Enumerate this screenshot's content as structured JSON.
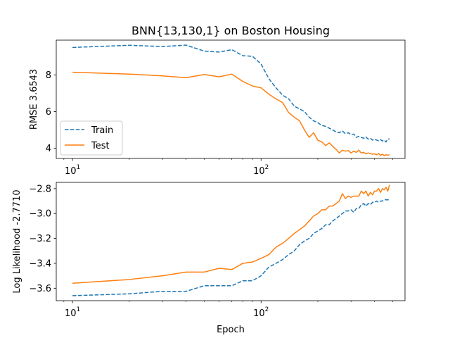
{
  "chart_data": [
    {
      "type": "line",
      "title": "BNN{13,130,1} on Boston Housing",
      "xlabel": "",
      "ylabel": "RMSE 3.6543",
      "xscale": "log",
      "xlim": [
        8.2,
        580
      ],
      "ylim": [
        3.45,
        9.9
      ],
      "yticks": [
        4,
        6,
        8
      ],
      "ytick_labels": [
        "4",
        "6",
        "8"
      ],
      "xticks": [
        10,
        100
      ],
      "xtick_labels": [
        "10^1",
        "10^2"
      ],
      "legend": {
        "position": "lower-left",
        "entries": [
          "Train",
          "Test"
        ]
      },
      "series": [
        {
          "name": "Train",
          "color": "#1f77b4",
          "style": "dashed",
          "x": [
            10,
            20,
            30,
            40,
            50,
            60,
            70,
            80,
            90,
            100,
            110,
            120,
            130,
            140,
            150,
            160,
            170,
            180,
            190,
            200,
            210,
            220,
            230,
            240,
            250,
            260,
            270,
            280,
            290,
            300,
            310,
            320,
            330,
            340,
            350,
            360,
            370,
            380,
            390,
            400,
            410,
            420,
            430,
            440,
            450,
            460,
            470,
            480
          ],
          "y": [
            9.5,
            9.62,
            9.55,
            9.63,
            9.3,
            9.25,
            9.38,
            9.05,
            9.02,
            8.6,
            7.8,
            7.3,
            6.9,
            6.7,
            6.3,
            6.15,
            6.0,
            5.7,
            5.5,
            5.4,
            5.25,
            5.2,
            5.1,
            5.0,
            4.9,
            4.85,
            4.95,
            4.8,
            4.85,
            4.75,
            4.78,
            4.6,
            4.65,
            4.6,
            4.55,
            4.62,
            4.5,
            4.55,
            4.45,
            4.5,
            4.45,
            4.42,
            4.48,
            4.4,
            4.45,
            4.35,
            4.5,
            4.52
          ]
        },
        {
          "name": "Test",
          "color": "#ff7f0e",
          "style": "solid",
          "x": [
            10,
            20,
            30,
            40,
            50,
            60,
            70,
            80,
            90,
            100,
            110,
            120,
            130,
            140,
            150,
            160,
            170,
            180,
            190,
            200,
            210,
            220,
            230,
            240,
            250,
            260,
            270,
            280,
            290,
            300,
            310,
            320,
            330,
            340,
            350,
            360,
            370,
            380,
            390,
            400,
            410,
            420,
            430,
            440,
            450,
            460,
            470,
            480
          ],
          "y": [
            8.15,
            8.05,
            7.95,
            7.85,
            8.03,
            7.9,
            8.05,
            7.65,
            7.4,
            7.3,
            6.95,
            6.7,
            6.5,
            5.95,
            5.7,
            5.5,
            5.0,
            4.6,
            4.85,
            4.45,
            4.35,
            4.15,
            4.3,
            4.1,
            3.95,
            3.75,
            3.9,
            3.85,
            3.88,
            3.75,
            3.85,
            3.78,
            3.9,
            3.75,
            3.78,
            3.7,
            3.75,
            3.72,
            3.68,
            3.7,
            3.65,
            3.72,
            3.62,
            3.68,
            3.6,
            3.65,
            3.63,
            3.65
          ]
        }
      ]
    },
    {
      "type": "line",
      "title": "",
      "xlabel": "Epoch",
      "ylabel": "Log Likelihood -2.7710",
      "xscale": "log",
      "xlim": [
        8.2,
        580
      ],
      "ylim": [
        -3.7,
        -2.75
      ],
      "yticks": [
        -3.6,
        -3.4,
        -3.2,
        -3.0,
        -2.8
      ],
      "ytick_labels": [
        "−3.6",
        "−3.4",
        "−3.2",
        "−3.0",
        "−2.8"
      ],
      "xticks": [
        10,
        100
      ],
      "xtick_labels": [
        "10^1",
        "10^2"
      ],
      "series": [
        {
          "name": "Train",
          "color": "#1f77b4",
          "style": "dashed",
          "x": [
            10,
            20,
            30,
            40,
            50,
            60,
            70,
            80,
            90,
            100,
            110,
            120,
            130,
            140,
            150,
            160,
            170,
            180,
            190,
            200,
            210,
            220,
            230,
            240,
            250,
            260,
            270,
            280,
            290,
            300,
            310,
            320,
            330,
            340,
            350,
            360,
            370,
            380,
            390,
            400,
            410,
            420,
            430,
            440,
            450,
            460,
            470,
            480
          ],
          "y": [
            -3.66,
            -3.645,
            -3.625,
            -3.625,
            -3.58,
            -3.58,
            -3.58,
            -3.54,
            -3.54,
            -3.5,
            -3.43,
            -3.4,
            -3.37,
            -3.33,
            -3.3,
            -3.25,
            -3.22,
            -3.2,
            -3.16,
            -3.14,
            -3.12,
            -3.09,
            -3.09,
            -3.06,
            -3.04,
            -3.02,
            -3.0,
            -2.98,
            -2.98,
            -2.97,
            -2.99,
            -2.96,
            -2.96,
            -2.93,
            -2.92,
            -2.94,
            -2.92,
            -2.93,
            -2.91,
            -2.91,
            -2.9,
            -2.91,
            -2.9,
            -2.9,
            -2.89,
            -2.89,
            -2.89,
            -2.89
          ]
        },
        {
          "name": "Test",
          "color": "#ff7f0e",
          "style": "solid",
          "x": [
            10,
            20,
            30,
            40,
            50,
            60,
            70,
            80,
            90,
            100,
            110,
            120,
            130,
            140,
            150,
            160,
            170,
            180,
            190,
            200,
            210,
            220,
            230,
            240,
            250,
            260,
            270,
            280,
            290,
            300,
            310,
            320,
            330,
            340,
            350,
            360,
            370,
            380,
            390,
            400,
            410,
            420,
            430,
            440,
            450,
            460,
            470,
            480
          ],
          "y": [
            -3.56,
            -3.53,
            -3.5,
            -3.47,
            -3.47,
            -3.44,
            -3.45,
            -3.4,
            -3.39,
            -3.36,
            -3.33,
            -3.27,
            -3.24,
            -3.2,
            -3.16,
            -3.13,
            -3.1,
            -3.06,
            -3.02,
            -3.0,
            -2.97,
            -2.97,
            -2.94,
            -2.94,
            -2.92,
            -2.9,
            -2.84,
            -2.88,
            -2.86,
            -2.87,
            -2.86,
            -2.86,
            -2.86,
            -2.82,
            -2.84,
            -2.82,
            -2.86,
            -2.83,
            -2.85,
            -2.82,
            -2.82,
            -2.8,
            -2.83,
            -2.8,
            -2.81,
            -2.79,
            -2.82,
            -2.77
          ]
        }
      ]
    }
  ]
}
